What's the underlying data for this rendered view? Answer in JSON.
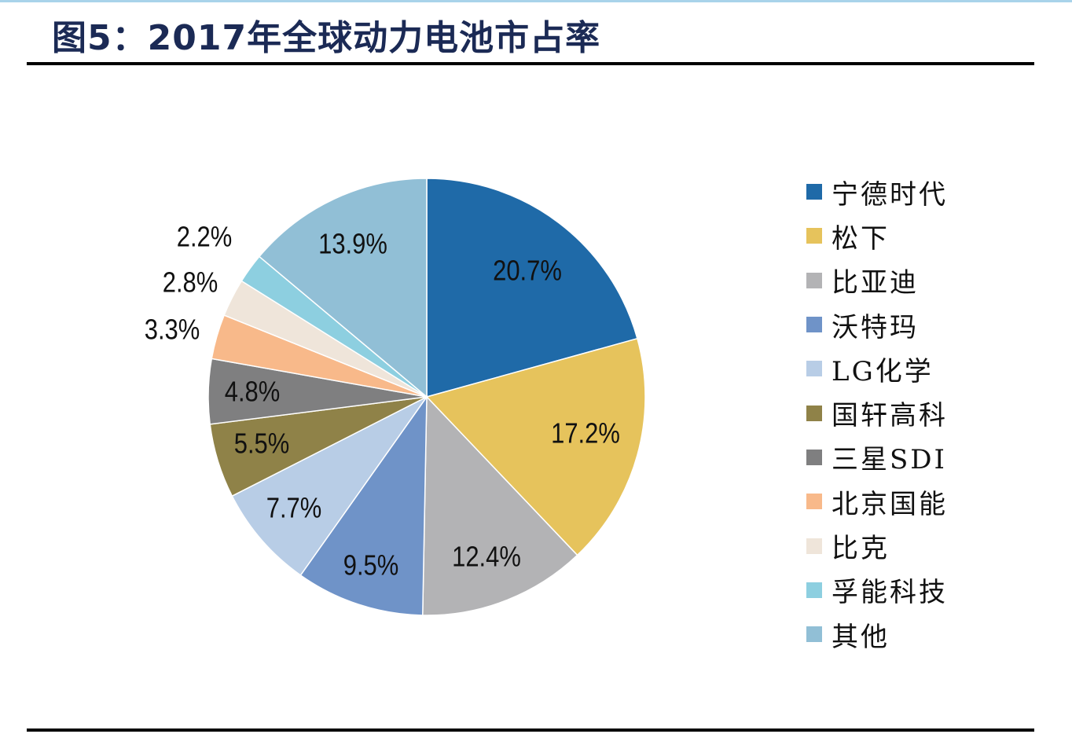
{
  "chart_data": {
    "type": "pie",
    "title": "图5：2017年全球动力电池市占率",
    "categories": [
      "宁德时代",
      "松下",
      "比亚迪",
      "沃特玛",
      "LG化学",
      "国轩高科",
      "三星SDI",
      "北京国能",
      "比克",
      "孚能科技",
      "其他"
    ],
    "values": [
      20.7,
      17.2,
      12.4,
      9.5,
      7.7,
      5.5,
      4.8,
      3.3,
      2.8,
      2.2,
      13.9
    ],
    "labels": [
      "20.7%",
      "17.2%",
      "12.4%",
      "9.5%",
      "7.7%",
      "5.5%",
      "4.8%",
      "3.3%",
      "2.8%",
      "2.2%",
      "13.9%"
    ],
    "colors": [
      "#1f6aa8",
      "#e6c35c",
      "#b3b3b5",
      "#6f93c8",
      "#b8cde6",
      "#8f8248",
      "#7f7f80",
      "#f8b98a",
      "#efe5da",
      "#8dcfe0",
      "#91bfd6"
    ],
    "start_angle": "12 o'clock",
    "direction": "clockwise",
    "legend_position": "right"
  }
}
